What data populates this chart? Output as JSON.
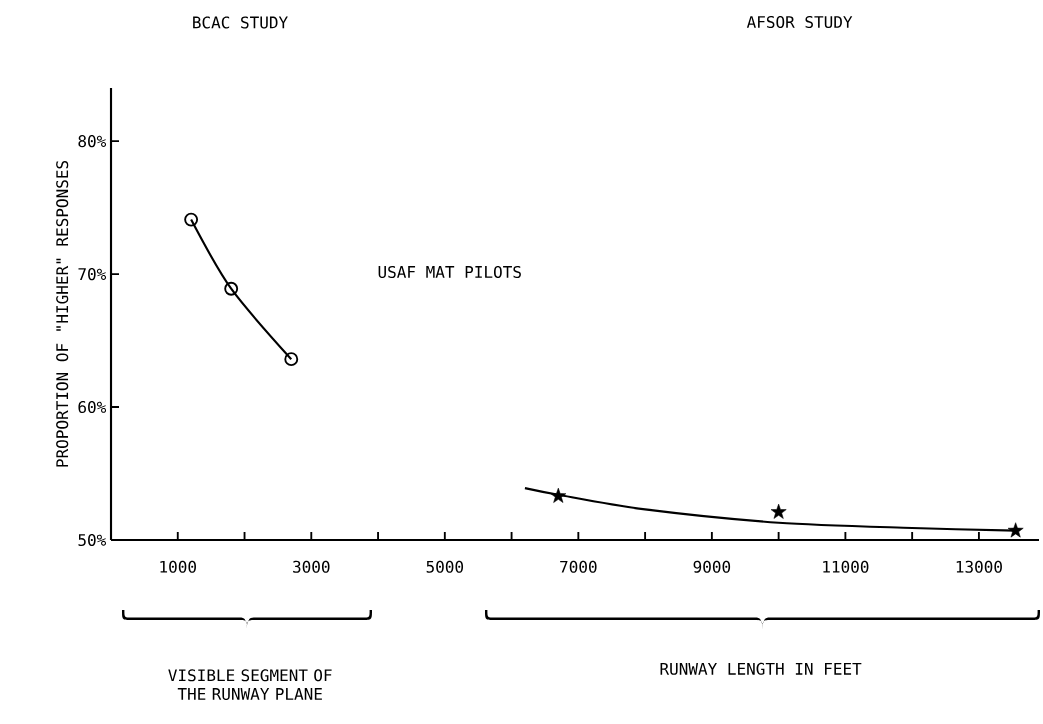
{
  "chart_data": {
    "type": "line",
    "ylabel": "PROPORTION OF \"HIGHER\" RESPONSES",
    "annotations": [
      "BCAC STUDY",
      "AFSOR STUDY",
      "USAF MAT PILOTS",
      "VISIBLE SEGMENT OF THE RUNWAY PLANE",
      "RUNWAY LENGTH IN FEET"
    ],
    "xlim": [
      0,
      13900
    ],
    "ylim": [
      50,
      84
    ],
    "xticks": [
      {
        "value": 1000,
        "label": "1000"
      },
      {
        "value": 2000,
        "label": null
      },
      {
        "value": 3000,
        "label": "3000"
      },
      {
        "value": 4000,
        "label": null
      },
      {
        "value": 5000,
        "label": "5000"
      },
      {
        "value": 6000,
        "label": null
      },
      {
        "value": 7000,
        "label": "7000"
      },
      {
        "value": 8000,
        "label": null
      },
      {
        "value": 9000,
        "label": "9000"
      },
      {
        "value": 10000,
        "label": null
      },
      {
        "value": 11000,
        "label": "11000"
      },
      {
        "value": 12000,
        "label": null
      },
      {
        "value": 13000,
        "label": "13000"
      }
    ],
    "yticks": [
      {
        "value": 50,
        "label": "50%"
      },
      {
        "value": 60,
        "label": "60%"
      },
      {
        "value": 70,
        "label": "70%"
      },
      {
        "value": 80,
        "label": "80%"
      }
    ],
    "series": [
      {
        "color": "#000000",
        "marker": "circle",
        "x": [
          1200,
          1800,
          2700
        ],
        "values": [
          74.1,
          68.9,
          63.6
        ]
      },
      {
        "type": "scatter",
        "color": "#000000",
        "marker": "star",
        "x": [
          6700,
          10000,
          13550
        ],
        "values": [
          53.3,
          52.1,
          50.7
        ]
      },
      {
        "color": "#000000",
        "marker": "none",
        "x": [
          6200,
          6700,
          8000,
          10000,
          12000,
          13550
        ],
        "values": [
          53.9,
          53.4,
          52.3,
          51.3,
          50.9,
          50.7
        ]
      }
    ]
  }
}
